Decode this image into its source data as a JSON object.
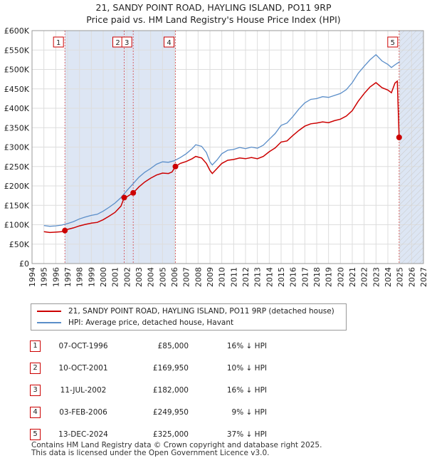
{
  "title": "21, SANDY POINT ROAD, HAYLING ISLAND, PO11 9RP",
  "subtitle": "Price paid vs. HM Land Registry's House Price Index (HPI)",
  "colors": {
    "price": "#cc0000",
    "hpi": "#5b8ec9",
    "shade": "#dde6f4",
    "grid": "#dddddd"
  },
  "chart_data": {
    "type": "line",
    "xlim": [
      1994,
      2027
    ],
    "ylim": [
      0,
      600000
    ],
    "x_ticks": [
      1994,
      1995,
      1996,
      1997,
      1998,
      1999,
      2000,
      2001,
      2002,
      2003,
      2004,
      2005,
      2006,
      2007,
      2008,
      2009,
      2010,
      2011,
      2012,
      2013,
      2014,
      2015,
      2016,
      2017,
      2018,
      2019,
      2020,
      2021,
      2022,
      2023,
      2024,
      2025,
      2026,
      2027
    ],
    "y_ticks": [
      {
        "value": 0,
        "label": "£0"
      },
      {
        "value": 50000,
        "label": "£50K"
      },
      {
        "value": 100000,
        "label": "£100K"
      },
      {
        "value": 150000,
        "label": "£150K"
      },
      {
        "value": 200000,
        "label": "£200K"
      },
      {
        "value": 250000,
        "label": "£250K"
      },
      {
        "value": 300000,
        "label": "£300K"
      },
      {
        "value": 350000,
        "label": "£350K"
      },
      {
        "value": 400000,
        "label": "£400K"
      },
      {
        "value": 450000,
        "label": "£450K"
      },
      {
        "value": 500000,
        "label": "£500K"
      },
      {
        "value": 550000,
        "label": "£550K"
      },
      {
        "value": 600000,
        "label": "£600K"
      }
    ],
    "grid": true,
    "series": [
      {
        "name": "21, SANDY POINT ROAD, HAYLING ISLAND, PO11 9RP (detached house)",
        "points": [
          [
            1995.0,
            82000
          ],
          [
            1995.5,
            80000
          ],
          [
            1996.0,
            81000
          ],
          [
            1996.5,
            82000
          ],
          [
            1996.77,
            85000
          ],
          [
            1997.0,
            88000
          ],
          [
            1997.5,
            92000
          ],
          [
            1998.0,
            97000
          ],
          [
            1998.5,
            101000
          ],
          [
            1999.0,
            104000
          ],
          [
            1999.5,
            106000
          ],
          [
            2000.0,
            113000
          ],
          [
            2000.5,
            122000
          ],
          [
            2001.0,
            132000
          ],
          [
            2001.5,
            148000
          ],
          [
            2001.77,
            169950
          ],
          [
            2002.0,
            172000
          ],
          [
            2002.3,
            178000
          ],
          [
            2002.53,
            182000
          ],
          [
            2003.0,
            197000
          ],
          [
            2003.5,
            210000
          ],
          [
            2004.0,
            220000
          ],
          [
            2004.5,
            228000
          ],
          [
            2005.0,
            233000
          ],
          [
            2005.5,
            232000
          ],
          [
            2005.8,
            236000
          ],
          [
            2006.09,
            249950
          ],
          [
            2006.5,
            258000
          ],
          [
            2007.0,
            263000
          ],
          [
            2007.5,
            270000
          ],
          [
            2007.8,
            276000
          ],
          [
            2008.3,
            272000
          ],
          [
            2008.7,
            258000
          ],
          [
            2009.0,
            240000
          ],
          [
            2009.2,
            232000
          ],
          [
            2009.6,
            245000
          ],
          [
            2010.0,
            258000
          ],
          [
            2010.5,
            266000
          ],
          [
            2011.0,
            268000
          ],
          [
            2011.5,
            272000
          ],
          [
            2012.0,
            270000
          ],
          [
            2012.5,
            273000
          ],
          [
            2013.0,
            270000
          ],
          [
            2013.5,
            276000
          ],
          [
            2014.0,
            288000
          ],
          [
            2014.5,
            298000
          ],
          [
            2015.0,
            313000
          ],
          [
            2015.5,
            316000
          ],
          [
            2016.0,
            330000
          ],
          [
            2016.5,
            343000
          ],
          [
            2017.0,
            354000
          ],
          [
            2017.5,
            360000
          ],
          [
            2018.0,
            362000
          ],
          [
            2018.5,
            365000
          ],
          [
            2019.0,
            363000
          ],
          [
            2019.5,
            368000
          ],
          [
            2020.0,
            372000
          ],
          [
            2020.5,
            380000
          ],
          [
            2021.0,
            394000
          ],
          [
            2021.5,
            418000
          ],
          [
            2022.0,
            438000
          ],
          [
            2022.5,
            455000
          ],
          [
            2023.0,
            466000
          ],
          [
            2023.5,
            453000
          ],
          [
            2024.0,
            447000
          ],
          [
            2024.3,
            440000
          ],
          [
            2024.6,
            465000
          ],
          [
            2024.8,
            470000
          ],
          [
            2024.95,
            325000
          ]
        ]
      },
      {
        "name": "HPI: Average price, detached house, Havant",
        "points": [
          [
            1995.0,
            98000
          ],
          [
            1995.5,
            96000
          ],
          [
            1996.0,
            97000
          ],
          [
            1996.5,
            99000
          ],
          [
            1997.0,
            103000
          ],
          [
            1997.5,
            108000
          ],
          [
            1998.0,
            115000
          ],
          [
            1998.5,
            120000
          ],
          [
            1999.0,
            124000
          ],
          [
            1999.5,
            127000
          ],
          [
            2000.0,
            135000
          ],
          [
            2000.5,
            145000
          ],
          [
            2001.0,
            156000
          ],
          [
            2001.5,
            170000
          ],
          [
            2002.0,
            188000
          ],
          [
            2002.5,
            205000
          ],
          [
            2003.0,
            222000
          ],
          [
            2003.5,
            235000
          ],
          [
            2004.0,
            245000
          ],
          [
            2004.5,
            256000
          ],
          [
            2005.0,
            262000
          ],
          [
            2005.5,
            261000
          ],
          [
            2006.0,
            265000
          ],
          [
            2006.5,
            273000
          ],
          [
            2007.0,
            283000
          ],
          [
            2007.5,
            296000
          ],
          [
            2007.8,
            306000
          ],
          [
            2008.3,
            302000
          ],
          [
            2008.7,
            286000
          ],
          [
            2009.0,
            262000
          ],
          [
            2009.2,
            254000
          ],
          [
            2009.6,
            267000
          ],
          [
            2010.0,
            283000
          ],
          [
            2010.5,
            292000
          ],
          [
            2011.0,
            294000
          ],
          [
            2011.5,
            299000
          ],
          [
            2012.0,
            296000
          ],
          [
            2012.5,
            300000
          ],
          [
            2013.0,
            297000
          ],
          [
            2013.5,
            305000
          ],
          [
            2014.0,
            320000
          ],
          [
            2014.5,
            335000
          ],
          [
            2015.0,
            356000
          ],
          [
            2015.5,
            362000
          ],
          [
            2016.0,
            379000
          ],
          [
            2016.5,
            398000
          ],
          [
            2017.0,
            414000
          ],
          [
            2017.5,
            423000
          ],
          [
            2018.0,
            425000
          ],
          [
            2018.5,
            430000
          ],
          [
            2019.0,
            428000
          ],
          [
            2019.5,
            433000
          ],
          [
            2020.0,
            438000
          ],
          [
            2020.5,
            448000
          ],
          [
            2021.0,
            466000
          ],
          [
            2021.5,
            490000
          ],
          [
            2022.0,
            508000
          ],
          [
            2022.5,
            525000
          ],
          [
            2023.0,
            538000
          ],
          [
            2023.5,
            522000
          ],
          [
            2024.0,
            513000
          ],
          [
            2024.3,
            505000
          ],
          [
            2024.6,
            512000
          ],
          [
            2024.8,
            516000
          ],
          [
            2025.0,
            520000
          ]
        ]
      }
    ],
    "sales": [
      {
        "id": "1",
        "x": 1996.77,
        "y": 85000
      },
      {
        "id": "2",
        "x": 2001.77,
        "y": 169950
      },
      {
        "id": "3",
        "x": 2002.53,
        "y": 182000
      },
      {
        "id": "4",
        "x": 2006.09,
        "y": 249950
      },
      {
        "id": "5",
        "x": 2024.95,
        "y": 325000
      }
    ],
    "shaded_ranges": [
      [
        1996.77,
        2006.09
      ],
      [
        2024.95,
        2027
      ]
    ]
  },
  "legend": {
    "price_label": "21, SANDY POINT ROAD, HAYLING ISLAND, PO11 9RP (detached house)",
    "hpi_label": "HPI: Average price, detached house, Havant"
  },
  "table": [
    {
      "num": "1",
      "date": "07-OCT-1996",
      "price": "£85,000",
      "hpi": "16% ↓ HPI"
    },
    {
      "num": "2",
      "date": "10-OCT-2001",
      "price": "£169,950",
      "hpi": "10% ↓ HPI"
    },
    {
      "num": "3",
      "date": "11-JUL-2002",
      "price": "£182,000",
      "hpi": "16% ↓ HPI"
    },
    {
      "num": "4",
      "date": "03-FEB-2006",
      "price": "£249,950",
      "hpi": "9% ↓ HPI"
    },
    {
      "num": "5",
      "date": "13-DEC-2024",
      "price": "£325,000",
      "hpi": "37% ↓ HPI"
    }
  ],
  "footer": {
    "line1": "Contains HM Land Registry data © Crown copyright and database right 2025.",
    "line2": "This data is licensed under the Open Government Licence v3.0."
  }
}
